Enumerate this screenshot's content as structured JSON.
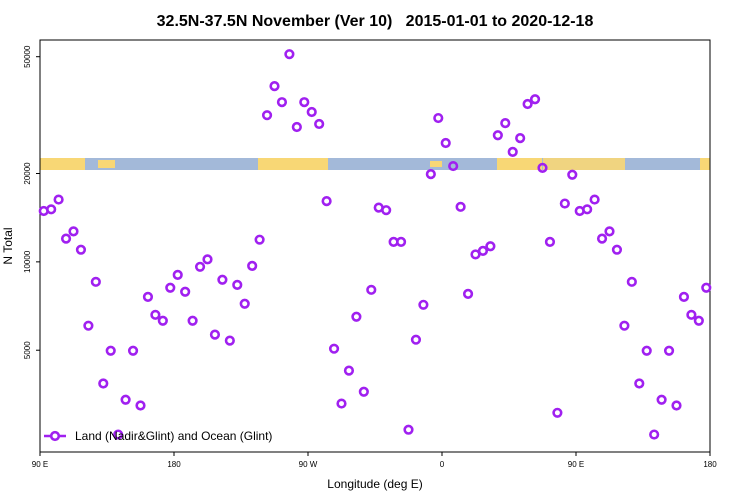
{
  "chart_data": {
    "type": "scatter",
    "title": "32.5N-37.5N November (Ver 10)   2015-01-01 to 2020-12-18",
    "x_label": "Longitude (deg E)",
    "y_label": "N Total",
    "xlim": [
      90,
      540
    ],
    "xticks": [
      {
        "value": 90,
        "label": "90 E"
      },
      180,
      {
        "value": 270,
        "label": "90 W"
      },
      {
        "value": 360,
        "label": "0"
      },
      {
        "value": 450,
        "label": "90 E"
      },
      {
        "value": 540,
        "label": "180"
      }
    ],
    "ylim": [
      2250,
      57000
    ],
    "yscale": "log",
    "yticks": [
      5000,
      10000,
      20000,
      50000
    ],
    "grid": false,
    "legend_position": "bottom left",
    "series": [
      {
        "name": "Land (Nadir&Glint) and Ocean (Glint)",
        "color": "#a020f0",
        "x": [
          92.5,
          97.5,
          102.5,
          107.5,
          112.5,
          117.5,
          122.5,
          127.5,
          132.5,
          137.5,
          142.5,
          147.5,
          152.5,
          157.5,
          162.5,
          167.5,
          172.5,
          177.5,
          182.5,
          187.5,
          192.5,
          197.5,
          202.5,
          207.5,
          212.5,
          217.5,
          222.5,
          227.5,
          232.5,
          237.5,
          242.5,
          247.5,
          252.5,
          257.5,
          262.5,
          267.5,
          272.5,
          277.5,
          282.5,
          287.5,
          292.5,
          297.5,
          302.5,
          307.5,
          312.5,
          317.5,
          322.5,
          327.5,
          332.5,
          337.5,
          342.5,
          347.5,
          352.5,
          357.5,
          362.5,
          367.5,
          372.5,
          377.5,
          382.5,
          387.5,
          392.5,
          397.5,
          402.5,
          407.5,
          412.5,
          417.5,
          422.5,
          427.5,
          432.5,
          437.5,
          442.5,
          447.5,
          452.5,
          457.5,
          462.5,
          467.5,
          472.5,
          477.5,
          482.5,
          487.5,
          492.5,
          497.5,
          502.5,
          507.5,
          512.5,
          517.5,
          522.5,
          527.5,
          532.5,
          537.5
        ],
        "values": [
          14900,
          15100,
          16300,
          12000,
          12700,
          11000,
          6060,
          8550,
          3850,
          4980,
          2580,
          3390,
          4980,
          3240,
          7600,
          6600,
          6300,
          8160,
          9030,
          7910,
          6300,
          9620,
          10200,
          5650,
          8690,
          5390,
          8350,
          7200,
          9690,
          11900,
          31600,
          39700,
          35000,
          51000,
          28800,
          35000,
          32400,
          29500,
          16100,
          5060,
          3290,
          4260,
          6500,
          3610,
          8030,
          15300,
          15000,
          11700,
          11700,
          2680,
          5430,
          7140,
          19900,
          30900,
          25400,
          21200,
          15400,
          7780,
          10600,
          10900,
          11300,
          27000,
          29700,
          23700,
          26400,
          34500,
          35800,
          20900,
          11700,
          3060,
          15800,
          19800,
          14900,
          15100,
          16300,
          12000,
          12700,
          11000,
          6060,
          8550,
          3850,
          4980,
          2580,
          3390,
          4980,
          3240,
          7600,
          6600,
          6300,
          8160
        ]
      }
    ]
  }
}
